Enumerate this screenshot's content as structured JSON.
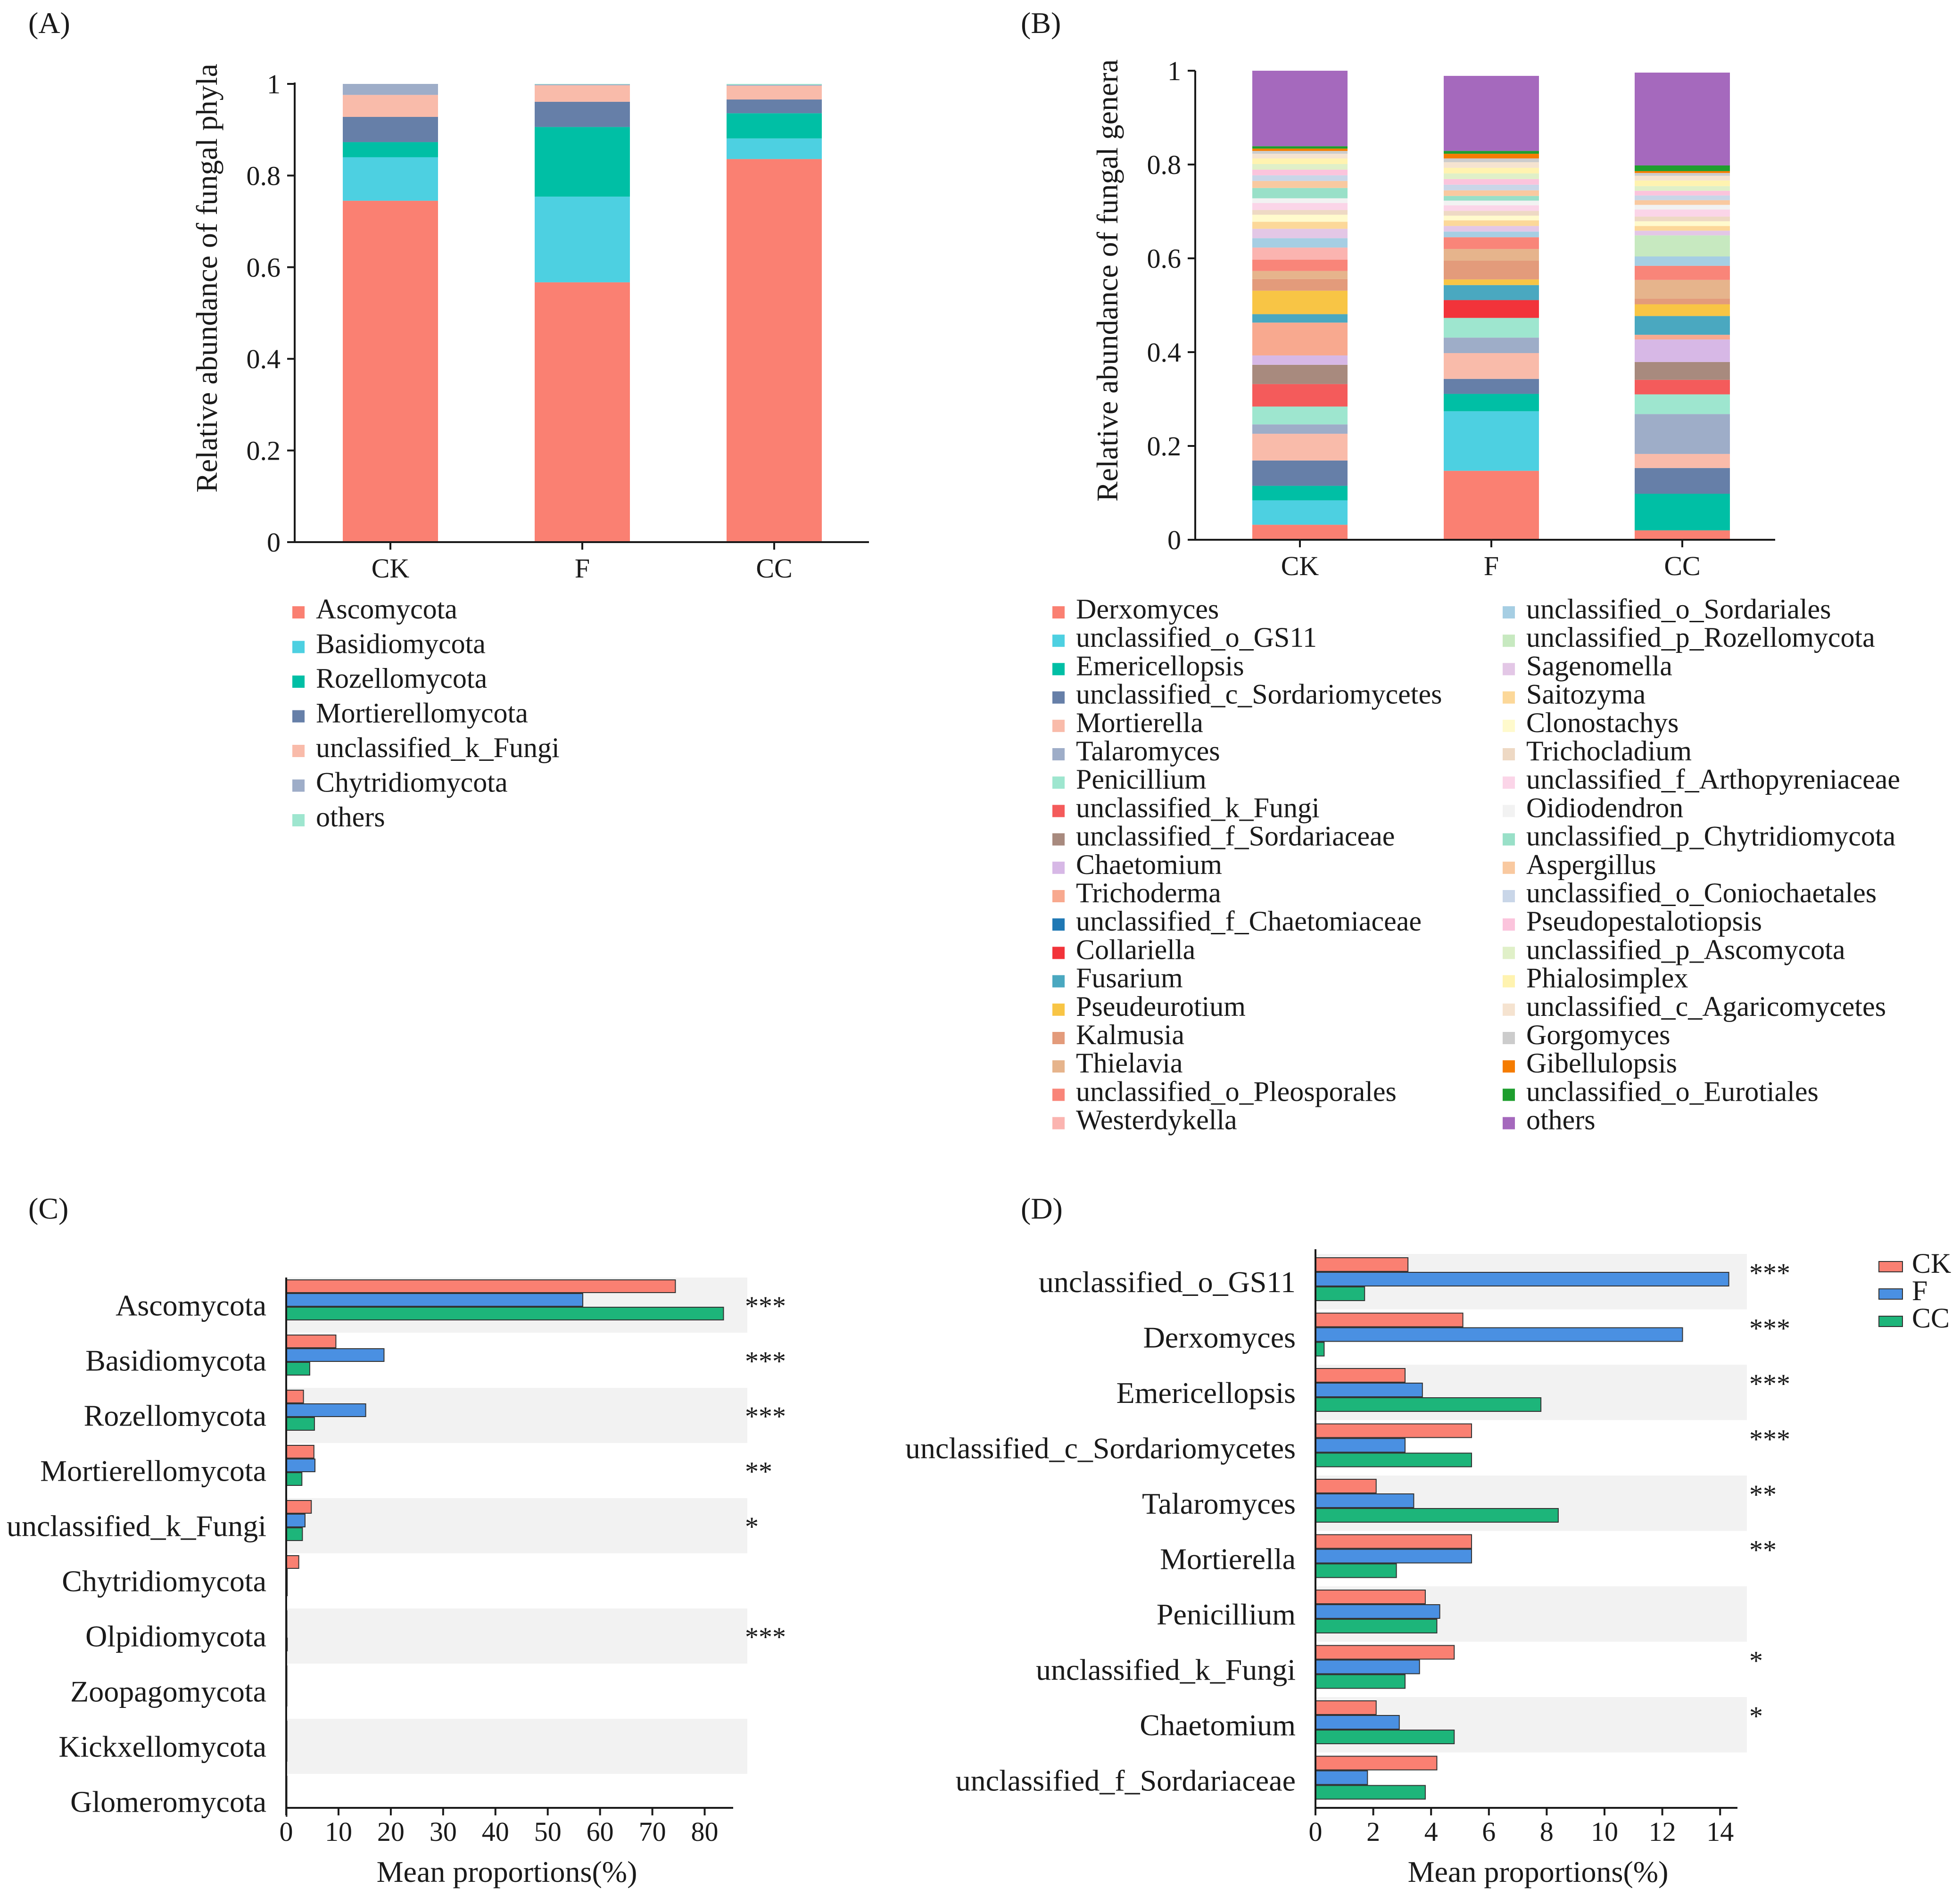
{
  "chart_data": [
    {
      "id": "A",
      "panel_label": "(A)",
      "type": "bar",
      "stacked": true,
      "ylabel": "Relative abundance of fungal phyla",
      "xlabel": "",
      "ylim": [
        0,
        1
      ],
      "yticks": [
        "0",
        "0.2",
        "0.4",
        "0.6",
        "0.8",
        "1"
      ],
      "categories": [
        "CK",
        "F",
        "CC"
      ],
      "legend": {
        "placement": "bottom"
      },
      "series": [
        {
          "name": "Ascomycota",
          "color": "#FA8072",
          "values": [
            0.745,
            0.567,
            0.836
          ]
        },
        {
          "name": "Basidiomycota",
          "color": "#4DD0E1",
          "values": [
            0.095,
            0.187,
            0.045
          ]
        },
        {
          "name": "Rozellomycota",
          "color": "#00BFA5",
          "values": [
            0.033,
            0.152,
            0.055
          ]
        },
        {
          "name": "Mortierellomycota",
          "color": "#667FA8",
          "values": [
            0.055,
            0.055,
            0.03
          ]
        },
        {
          "name": "unclassified_k_Fungi",
          "color": "#F9BBAA",
          "values": [
            0.048,
            0.036,
            0.03
          ]
        },
        {
          "name": "Chytridiomycota",
          "color": "#9EADC8",
          "values": [
            0.024,
            0.002,
            0.002
          ]
        },
        {
          "name": "others",
          "color": "#9EE6CF",
          "values": [
            0.0,
            0.001,
            0.002
          ]
        }
      ]
    },
    {
      "id": "B",
      "panel_label": "(B)",
      "type": "bar",
      "stacked": true,
      "ylabel": "Relative abundance of fungal genera",
      "xlabel": "",
      "ylim": [
        0,
        1
      ],
      "yticks": [
        "0",
        "0.2",
        "0.4",
        "0.6",
        "0.8",
        "1"
      ],
      "categories": [
        "CK",
        "F",
        "CC"
      ],
      "legend": {
        "placement": "bottom",
        "columns": 2
      },
      "series": [
        {
          "name": "Derxomyces",
          "color": "#FA8072",
          "values": [
            0.032,
            0.147,
            0.02
          ]
        },
        {
          "name": "unclassified_o_GS11",
          "color": "#4DD0E1",
          "values": [
            0.052,
            0.127,
            0.0
          ]
        },
        {
          "name": "Emericellopsis",
          "color": "#00BFA5",
          "values": [
            0.031,
            0.037,
            0.078
          ]
        },
        {
          "name": "unclassified_c_Sordariomycetes",
          "color": "#667FA8",
          "values": [
            0.054,
            0.032,
            0.055
          ]
        },
        {
          "name": "Mortierella",
          "color": "#F9BBAA",
          "values": [
            0.057,
            0.055,
            0.03
          ]
        },
        {
          "name": "Talaromyces",
          "color": "#9EADC8",
          "values": [
            0.02,
            0.033,
            0.085
          ]
        },
        {
          "name": "Penicillium",
          "color": "#9EE6CF",
          "values": [
            0.038,
            0.042,
            0.042
          ]
        },
        {
          "name": "unclassified_k_Fungi",
          "color": "#F45B5B",
          "values": [
            0.048,
            0.0,
            0.031
          ]
        },
        {
          "name": "unclassified_f_Sordariaceae",
          "color": "#A88A7E",
          "values": [
            0.041,
            0.0,
            0.038
          ]
        },
        {
          "name": "Chaetomium",
          "color": "#D7B8E6",
          "values": [
            0.02,
            0.0,
            0.048
          ]
        },
        {
          "name": "Trichoderma",
          "color": "#F8A98F",
          "values": [
            0.07,
            0.0,
            0.01
          ]
        },
        {
          "name": "unclassified_f_Chaetomiaceae",
          "color": "#1F78B4",
          "values": [
            0.0,
            0.0,
            0.0
          ]
        },
        {
          "name": "Collariella",
          "color": "#F2333A",
          "values": [
            0.0,
            0.038,
            0.0
          ]
        },
        {
          "name": "Fusarium",
          "color": "#4AA8C0",
          "values": [
            0.018,
            0.032,
            0.04
          ]
        },
        {
          "name": "Pseudeurotium",
          "color": "#F8C545",
          "values": [
            0.05,
            0.012,
            0.025
          ]
        },
        {
          "name": "Kalmusia",
          "color": "#E39B7B",
          "values": [
            0.025,
            0.04,
            0.012
          ]
        },
        {
          "name": "Thielavia",
          "color": "#E6B48C",
          "values": [
            0.017,
            0.025,
            0.04
          ]
        },
        {
          "name": "unclassified_o_Pleosporales",
          "color": "#F98579",
          "values": [
            0.024,
            0.025,
            0.03
          ]
        },
        {
          "name": "Westerdykella",
          "color": "#FBB4B0",
          "values": [
            0.026,
            0.0,
            0.0
          ]
        },
        {
          "name": "unclassified_o_Sordariales",
          "color": "#A6CEE3",
          "values": [
            0.02,
            0.012,
            0.02
          ]
        },
        {
          "name": "unclassified_p_Rozellomycota",
          "color": "#C7E9C0",
          "values": [
            0.0,
            0.0,
            0.045
          ]
        },
        {
          "name": "Sagenomella",
          "color": "#E3C7E6",
          "values": [
            0.02,
            0.012,
            0.01
          ]
        },
        {
          "name": "Saitozyma",
          "color": "#FCD899",
          "values": [
            0.015,
            0.012,
            0.01
          ]
        },
        {
          "name": "Clonostachys",
          "color": "#FFFACD",
          "values": [
            0.015,
            0.01,
            0.01
          ]
        },
        {
          "name": "Trichocladium",
          "color": "#EED9C4",
          "values": [
            0.01,
            0.01,
            0.01
          ]
        },
        {
          "name": "unclassified_f_Arthopyreniaceae",
          "color": "#FBD5E8",
          "values": [
            0.015,
            0.012,
            0.015
          ]
        },
        {
          "name": "Oidiodendron",
          "color": "#F2F2F2",
          "values": [
            0.01,
            0.01,
            0.01
          ]
        },
        {
          "name": "unclassified_p_Chytridiomycota",
          "color": "#99E0C8",
          "values": [
            0.022,
            0.01,
            0.0
          ]
        },
        {
          "name": "Aspergillus",
          "color": "#F9C9A0",
          "values": [
            0.015,
            0.012,
            0.01
          ]
        },
        {
          "name": "unclassified_o_Coniochaetales",
          "color": "#C9D6E8",
          "values": [
            0.012,
            0.012,
            0.01
          ]
        },
        {
          "name": "Pseudopestalotiopsis",
          "color": "#FBC4DC",
          "values": [
            0.012,
            0.012,
            0.01
          ]
        },
        {
          "name": "unclassified_p_Ascomycota",
          "color": "#E0F0C8",
          "values": [
            0.012,
            0.012,
            0.01
          ]
        },
        {
          "name": "Phialosimplex",
          "color": "#FFF3B0",
          "values": [
            0.012,
            0.012,
            0.012
          ]
        },
        {
          "name": "unclassified_c_Agaricomycetes",
          "color": "#F5E3D0",
          "values": [
            0.01,
            0.012,
            0.01
          ]
        },
        {
          "name": "Gorgomyces",
          "color": "#CCCCCC",
          "values": [
            0.006,
            0.008,
            0.006
          ]
        },
        {
          "name": "Gibellulopsis",
          "color": "#F57C00",
          "values": [
            0.005,
            0.01,
            0.004
          ]
        },
        {
          "name": "unclassified_o_Eurotiales",
          "color": "#1E9E2E",
          "values": [
            0.005,
            0.006,
            0.012
          ]
        },
        {
          "name": "others",
          "color": "#A569BD",
          "values": [
            0.161,
            0.16,
            0.198
          ]
        }
      ]
    },
    {
      "id": "C",
      "panel_label": "(C)",
      "type": "bar",
      "orientation": "horizontal",
      "xlabel": "Mean proportions(%)",
      "xlim": [
        0,
        85
      ],
      "xticks": [
        "0",
        "10",
        "20",
        "30",
        "40",
        "50",
        "60",
        "70",
        "80"
      ],
      "categories": [
        "Ascomycota",
        "Basidiomycota",
        "Rozellomycota",
        "Mortierellomycota",
        "unclassified_k_Fungi",
        "Chytridiomycota",
        "Olpidiomycota",
        "Zoopagomycota",
        "Kickxellomycota",
        "Glomeromycota"
      ],
      "significance": [
        "***",
        "***",
        "***",
        "**",
        "*",
        "",
        "***",
        "",
        "",
        ""
      ],
      "series": [
        {
          "name": "CK",
          "color": "#FA8072",
          "values": [
            74.4,
            9.5,
            3.3,
            5.3,
            4.8,
            2.4,
            0.05,
            0.02,
            0.02,
            0.01
          ]
        },
        {
          "name": "F",
          "color": "#4A90E2",
          "values": [
            56.7,
            18.7,
            15.2,
            5.5,
            3.6,
            0.2,
            0.1,
            0.02,
            0.02,
            0.01
          ]
        },
        {
          "name": "CC",
          "color": "#1DB57A",
          "values": [
            83.6,
            4.5,
            5.4,
            3.0,
            3.1,
            0.2,
            0.2,
            0.02,
            0.02,
            0.01
          ]
        }
      ]
    },
    {
      "id": "D",
      "panel_label": "(D)",
      "type": "bar",
      "orientation": "horizontal",
      "xlabel": "Mean proportions(%)",
      "xlim": [
        0,
        14.6
      ],
      "xticks": [
        "0",
        "2",
        "4",
        "6",
        "8",
        "10",
        "12",
        "14"
      ],
      "categories": [
        "unclassified_o_GS11",
        "Derxomyces",
        "Emericellopsis",
        "unclassified_c_Sordariomycetes",
        "Talaromyces",
        "Mortierella",
        "Penicillium",
        "unclassified_k_Fungi",
        "Chaetomium",
        "unclassified_f_Sordariaceae"
      ],
      "significance": [
        "***",
        "***",
        "***",
        "***",
        "**",
        "**",
        "",
        "*",
        "*",
        ""
      ],
      "legend": {
        "placement": "top-right"
      },
      "series": [
        {
          "name": "CK",
          "color": "#FA8072",
          "values": [
            3.2,
            5.1,
            3.1,
            5.4,
            2.1,
            5.4,
            3.8,
            4.8,
            2.1,
            4.2
          ]
        },
        {
          "name": "F",
          "color": "#4A90E2",
          "values": [
            14.3,
            12.7,
            3.7,
            3.1,
            3.4,
            5.4,
            4.3,
            3.6,
            2.9,
            1.8
          ]
        },
        {
          "name": "CC",
          "color": "#1DB57A",
          "values": [
            1.7,
            0.3,
            7.8,
            5.4,
            8.4,
            2.8,
            4.2,
            3.1,
            4.8,
            3.8
          ]
        }
      ]
    }
  ]
}
